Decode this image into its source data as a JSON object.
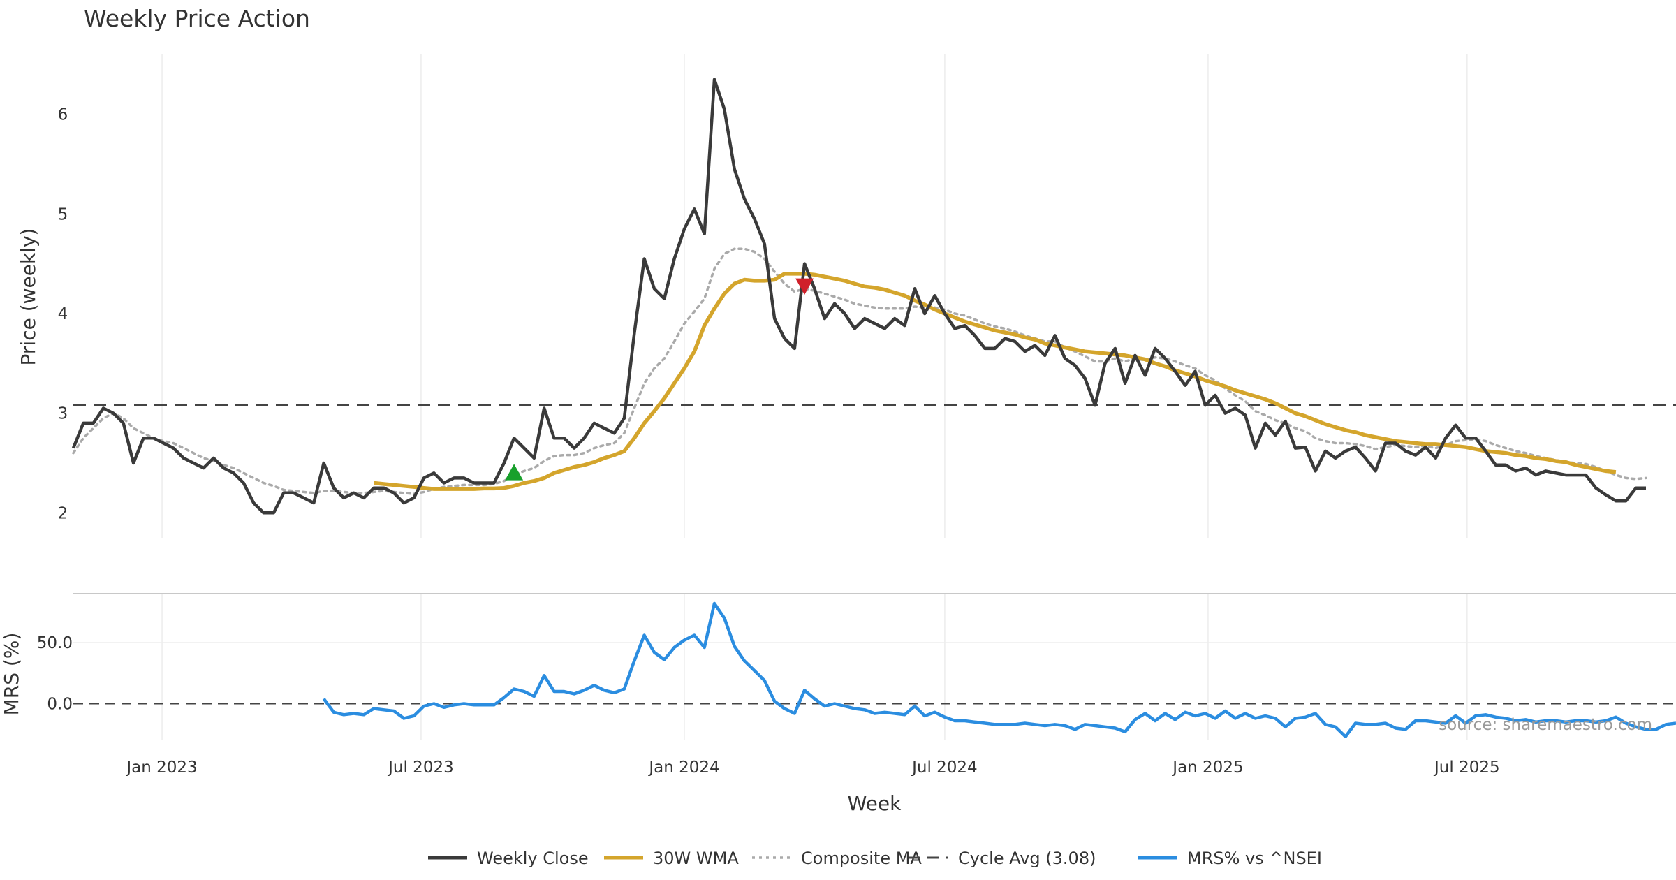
{
  "chart_data": {
    "type": "line",
    "title": "Weekly Price Action",
    "xlabel": "Week",
    "source": "source: sharemaestro.com",
    "x_ticks": [
      "Jan 2023",
      "Jul 2023",
      "Jan 2024",
      "Jul 2024",
      "Jan 2025",
      "Jul 2025"
    ],
    "x_tick_dates": [
      "2023-01-01",
      "2023-07-01",
      "2024-01-01",
      "2024-07-01",
      "2025-01-01",
      "2025-07-01"
    ],
    "x_range": [
      "2022-10-31",
      "2025-11-24"
    ],
    "start_week": "2022-10-31",
    "price_panel": {
      "ylabel": "Price (weekly)",
      "yticks": [
        "2",
        "3",
        "4",
        "5",
        "6"
      ],
      "ylim": [
        1.75,
        6.6
      ],
      "cycle_avg": 3.08,
      "weekly_close": [
        2.65,
        2.9,
        2.9,
        3.05,
        3.0,
        2.9,
        2.5,
        2.75,
        2.75,
        2.7,
        2.65,
        2.55,
        2.5,
        2.45,
        2.55,
        2.45,
        2.4,
        2.3,
        2.1,
        2.0,
        2.0,
        2.2,
        2.2,
        2.15,
        2.1,
        2.5,
        2.25,
        2.15,
        2.2,
        2.15,
        2.25,
        2.25,
        2.2,
        2.1,
        2.15,
        2.35,
        2.4,
        2.3,
        2.35,
        2.35,
        2.3,
        2.3,
        2.3,
        2.5,
        2.75,
        2.65,
        2.55,
        3.05,
        2.75,
        2.75,
        2.65,
        2.75,
        2.9,
        2.85,
        2.8,
        2.95,
        3.8,
        4.55,
        4.25,
        4.15,
        4.55,
        4.85,
        5.05,
        4.8,
        6.35,
        6.05,
        5.45,
        5.15,
        4.95,
        4.7,
        3.95,
        3.75,
        3.65,
        4.5,
        4.25,
        3.95,
        4.1,
        4.0,
        3.85,
        3.95,
        3.9,
        3.85,
        3.95,
        3.88,
        4.25,
        4.0,
        4.18,
        4.0,
        3.85,
        3.88,
        3.78,
        3.65,
        3.65,
        3.75,
        3.72,
        3.62,
        3.68,
        3.58,
        3.78,
        3.55,
        3.48,
        3.35,
        3.08,
        3.5,
        3.65,
        3.3,
        3.58,
        3.38,
        3.65,
        3.55,
        3.42,
        3.28,
        3.42,
        3.08,
        3.18,
        3.0,
        3.05,
        2.98,
        2.65,
        2.9,
        2.78,
        2.92,
        2.65,
        2.66,
        2.42,
        2.62,
        2.55,
        2.62,
        2.66,
        2.55,
        2.42,
        2.7,
        2.7,
        2.62,
        2.58,
        2.66,
        2.55,
        2.75,
        2.88,
        2.75,
        2.75,
        2.62,
        2.48,
        2.48,
        2.42,
        2.45,
        2.38,
        2.42,
        2.4,
        2.38,
        2.38,
        2.38,
        2.25,
        2.18,
        2.12,
        2.12,
        2.25,
        2.25
      ],
      "wma_start_index": 30,
      "wma_30w": [
        2.3,
        2.29,
        2.28,
        2.27,
        2.26,
        2.25,
        2.24,
        2.24,
        2.24,
        2.24,
        2.24,
        2.245,
        2.245,
        2.25,
        2.27,
        2.3,
        2.32,
        2.35,
        2.4,
        2.43,
        2.46,
        2.48,
        2.51,
        2.55,
        2.58,
        2.62,
        2.75,
        2.9,
        3.02,
        3.15,
        3.3,
        3.45,
        3.62,
        3.88,
        4.05,
        4.2,
        4.3,
        4.34,
        4.33,
        4.33,
        4.34,
        4.4,
        4.4,
        4.4,
        4.39,
        4.37,
        4.35,
        4.33,
        4.3,
        4.27,
        4.26,
        4.24,
        4.21,
        4.18,
        4.13,
        4.09,
        4.04,
        4.0,
        3.96,
        3.92,
        3.89,
        3.86,
        3.83,
        3.81,
        3.79,
        3.76,
        3.74,
        3.7,
        3.68,
        3.66,
        3.64,
        3.62,
        3.61,
        3.6,
        3.59,
        3.58,
        3.56,
        3.54,
        3.5,
        3.47,
        3.43,
        3.4,
        3.37,
        3.33,
        3.3,
        3.27,
        3.23,
        3.2,
        3.17,
        3.14,
        3.1,
        3.05,
        3.0,
        2.97,
        2.93,
        2.89,
        2.86,
        2.83,
        2.81,
        2.78,
        2.76,
        2.74,
        2.72,
        2.71,
        2.7,
        2.69,
        2.69,
        2.68,
        2.67,
        2.66,
        2.64,
        2.62,
        2.61,
        2.6,
        2.58,
        2.57,
        2.55,
        2.54,
        2.52,
        2.51,
        2.48,
        2.46,
        2.44,
        2.42,
        2.41
      ],
      "composite_ma": [
        2.6,
        2.75,
        2.85,
        2.95,
        3.0,
        2.95,
        2.85,
        2.8,
        2.75,
        2.72,
        2.7,
        2.65,
        2.6,
        2.55,
        2.52,
        2.48,
        2.45,
        2.4,
        2.35,
        2.3,
        2.27,
        2.23,
        2.22,
        2.21,
        2.2,
        2.22,
        2.22,
        2.21,
        2.2,
        2.2,
        2.21,
        2.22,
        2.21,
        2.2,
        2.19,
        2.21,
        2.24,
        2.26,
        2.27,
        2.28,
        2.28,
        2.28,
        2.29,
        2.32,
        2.38,
        2.42,
        2.45,
        2.52,
        2.57,
        2.58,
        2.58,
        2.6,
        2.65,
        2.68,
        2.7,
        2.8,
        3.05,
        3.3,
        3.45,
        3.55,
        3.72,
        3.9,
        4.02,
        4.15,
        4.45,
        4.6,
        4.65,
        4.65,
        4.62,
        4.55,
        4.42,
        4.3,
        4.22,
        4.25,
        4.23,
        4.2,
        4.17,
        4.14,
        4.1,
        4.08,
        4.06,
        4.05,
        4.05,
        4.05,
        4.07,
        4.06,
        4.06,
        4.04,
        4.0,
        3.98,
        3.94,
        3.9,
        3.87,
        3.85,
        3.82,
        3.78,
        3.75,
        3.72,
        3.72,
        3.66,
        3.62,
        3.57,
        3.52,
        3.52,
        3.55,
        3.52,
        3.55,
        3.53,
        3.56,
        3.55,
        3.52,
        3.48,
        3.45,
        3.38,
        3.33,
        3.25,
        3.18,
        3.12,
        3.02,
        2.98,
        2.93,
        2.9,
        2.85,
        2.82,
        2.75,
        2.72,
        2.7,
        2.7,
        2.69,
        2.67,
        2.64,
        2.66,
        2.68,
        2.67,
        2.66,
        2.67,
        2.65,
        2.68,
        2.72,
        2.73,
        2.74,
        2.72,
        2.68,
        2.65,
        2.62,
        2.6,
        2.57,
        2.55,
        2.53,
        2.51,
        2.5,
        2.49,
        2.46,
        2.42,
        2.38,
        2.35,
        2.34,
        2.35
      ],
      "markers": [
        {
          "type": "buy",
          "index": 44,
          "value": 2.4,
          "color": "#18a02c"
        },
        {
          "type": "sell",
          "index": 73,
          "value": 4.28,
          "color": "#d0202a"
        }
      ]
    },
    "mrs_panel": {
      "ylabel": "MRS (%)",
      "yticks": [
        "0.0",
        "50.0"
      ],
      "ylim": [
        -30,
        90
      ],
      "zero_line": 0,
      "start_index": 25,
      "values": [
        4,
        -7,
        -9,
        -8,
        -9,
        -4,
        -5,
        -6,
        -12,
        -10,
        -2,
        0,
        -3,
        -1,
        0,
        -1,
        -1,
        -1,
        5,
        12,
        10,
        6,
        23,
        10,
        10,
        8,
        11,
        15,
        11,
        9,
        12,
        35,
        56,
        42,
        36,
        46,
        52,
        56,
        46,
        82,
        70,
        47,
        35,
        27,
        19,
        2,
        -4,
        -8,
        11,
        4,
        -2,
        0,
        -2,
        -4,
        -5,
        -8,
        -7,
        -8,
        -9,
        -2,
        -10,
        -7,
        -11,
        -14,
        -14,
        -15,
        -16,
        -17,
        -17,
        -17,
        -16,
        -17,
        -18,
        -17,
        -18,
        -21,
        -17,
        -18,
        -19,
        -20,
        -23,
        -13,
        -8,
        -14,
        -8,
        -13,
        -7,
        -10,
        -8,
        -12,
        -6,
        -12,
        -8,
        -12,
        -10,
        -12,
        -19,
        -12,
        -11,
        -8,
        -17,
        -19,
        -27,
        -16,
        -17,
        -17,
        -16,
        -20,
        -21,
        -14,
        -14,
        -15,
        -16,
        -10,
        -16,
        -10,
        -9,
        -11,
        -12,
        -14,
        -13,
        -15,
        -14,
        -14,
        -15,
        -14,
        -14,
        -15,
        -14,
        -11,
        -16,
        -19,
        -21,
        -21,
        -17,
        -16
      ]
    },
    "legend_position": "bottom-center",
    "legend": [
      {
        "label": "Weekly Close",
        "color": "#3a3a3a",
        "style": "solid"
      },
      {
        "label": "30W WMA",
        "color": "#d4a52c",
        "style": "solid"
      },
      {
        "label": "Composite MA",
        "color": "#aaaaaa",
        "style": "dotted"
      },
      {
        "label": "Cycle Avg (3.08)",
        "color": "#444444",
        "style": "dashed"
      },
      {
        "label": "MRS% vs ^NSEI",
        "color": "#2b8de0",
        "style": "solid"
      }
    ]
  }
}
